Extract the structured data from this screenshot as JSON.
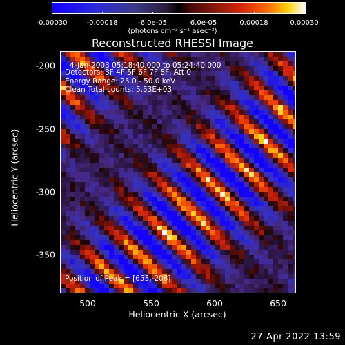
{
  "colorbar": {
    "ticks": [
      "-0.00030",
      "-0.00018",
      "-6.0e-05",
      "6.0e-05",
      "0.00018",
      "0.00030"
    ],
    "units": "(photons cm⁻² s⁻¹ asec⁻²)",
    "colors": [
      "#1400ff",
      "#000000",
      "#d8250c",
      "#ffd000",
      "#ffffff"
    ]
  },
  "title": "Reconstructed RHESSI Image",
  "annotations": {
    "time_range": "4-Jan-2003 05:18:40.000 to 05:24:40.000",
    "detectors": "Detectors: 3F 4F 5F 6F 7F 8F, Att 0",
    "energy": "Energy Range: 25.0 - 50.0 keV",
    "clean": "Clean    Total counts: 5.53E+03",
    "peak": "Position of Peak = [653,-208]"
  },
  "axes": {
    "xlabel": "Heliocentric X (arcsec)",
    "ylabel": "Heliocentric Y (arcsec)",
    "xticks": [
      "500",
      "550",
      "600",
      "650"
    ],
    "yticks": [
      "-200",
      "-250",
      "-300",
      "-350"
    ]
  },
  "timestamp": "27-Apr-2022 13:59"
}
